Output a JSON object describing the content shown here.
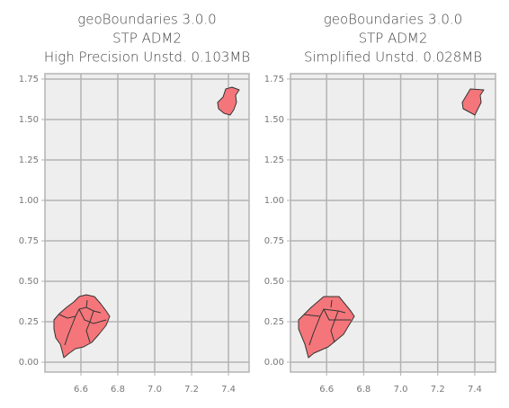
{
  "chart_data": [
    {
      "type": "map",
      "title": [
        "geoBoundaries 3.0.0",
        "STP ADM2",
        "High Precision Unstd. 0.103MB"
      ],
      "xlim": [
        6.405,
        7.512
      ],
      "ylim": [
        -0.061,
        1.783
      ],
      "xticks": [
        6.6,
        6.8,
        {
          "value": 7.0,
          "label": "7.0"
        },
        7.2,
        7.4
      ],
      "yticks": [
        {
          "value": 0,
          "label": "0.00"
        },
        0.25,
        {
          "value": 0.5,
          "label": "0.50"
        },
        0.75,
        {
          "value": 1,
          "label": "1.00"
        },
        1.25,
        {
          "value": 1.5,
          "label": "1.50"
        },
        1.75
      ],
      "grid": true,
      "color": "#f4767a"
    },
    {
      "type": "map",
      "title": [
        "geoBoundaries 3.0.0",
        "STP ADM2",
        "Simplified Unstd. 0.028MB"
      ],
      "xlim": [
        6.405,
        7.512
      ],
      "ylim": [
        -0.061,
        1.783
      ],
      "xticks": [
        6.6,
        6.8,
        {
          "value": 7.0,
          "label": "7.0"
        },
        7.2,
        7.4
      ],
      "yticks": [
        {
          "value": 0,
          "label": "0.00"
        },
        0.25,
        {
          "value": 0.5,
          "label": "0.50"
        },
        0.75,
        {
          "value": 1,
          "label": "1.00"
        },
        1.25,
        {
          "value": 1.5,
          "label": "1.50"
        },
        1.75
      ],
      "grid": true,
      "color": "#f4767a"
    }
  ]
}
